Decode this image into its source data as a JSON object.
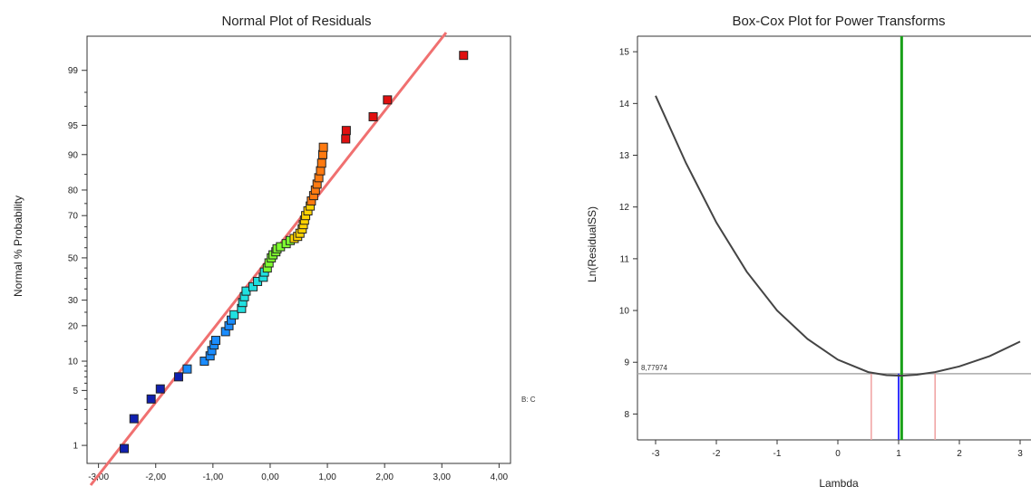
{
  "chart_data": [
    {
      "type": "scatter",
      "title": "Normal Plot of Residuals",
      "xlabel": "",
      "ylabel": "Normal % Probability",
      "xlim": [
        -3.2,
        4.2
      ],
      "x_ticks": [
        -3,
        -2,
        -1,
        0,
        1,
        2,
        3,
        4
      ],
      "x_tick_labels": [
        "-3,00",
        "-2,00",
        "-1,00",
        "0,00",
        "1,00",
        "2,00",
        "3,00",
        "4,00"
      ],
      "y_scale": "normal-probability",
      "y_ticks": [
        1,
        5,
        10,
        20,
        30,
        50,
        70,
        80,
        90,
        95,
        99
      ],
      "y_tick_labels": [
        "1",
        "5",
        "10",
        "20",
        "30",
        "50",
        "70",
        "80",
        "90",
        "95",
        "99"
      ],
      "reference_line_color": "#f07070",
      "side_label": "B: C",
      "point_colors_low_to_high": [
        "#1020b0",
        "#1a8cff",
        "#20e0e0",
        "#7fff30",
        "#ffd200",
        "#ff7a10",
        "#e01010"
      ],
      "points": [
        {
          "x": -2.55,
          "p": 0.9
        },
        {
          "x": -2.38,
          "p": 2.3
        },
        {
          "x": -2.08,
          "p": 4.0
        },
        {
          "x": -1.92,
          "p": 5.2
        },
        {
          "x": -1.6,
          "p": 7.0
        },
        {
          "x": -1.45,
          "p": 8.4
        },
        {
          "x": -1.15,
          "p": 10.0
        },
        {
          "x": -1.05,
          "p": 11.2
        },
        {
          "x": -1.02,
          "p": 12.5
        },
        {
          "x": -0.98,
          "p": 14.0
        },
        {
          "x": -0.95,
          "p": 15.3
        },
        {
          "x": -0.78,
          "p": 18.0
        },
        {
          "x": -0.72,
          "p": 20.0
        },
        {
          "x": -0.68,
          "p": 22.0
        },
        {
          "x": -0.63,
          "p": 24.0
        },
        {
          "x": -0.5,
          "p": 26.5
        },
        {
          "x": -0.48,
          "p": 29.0
        },
        {
          "x": -0.45,
          "p": 31.5
        },
        {
          "x": -0.42,
          "p": 34.0
        },
        {
          "x": -0.3,
          "p": 36.0
        },
        {
          "x": -0.22,
          "p": 38.5
        },
        {
          "x": -0.12,
          "p": 40.5
        },
        {
          "x": -0.1,
          "p": 43.0
        },
        {
          "x": -0.05,
          "p": 45.0
        },
        {
          "x": -0.02,
          "p": 47.5
        },
        {
          "x": 0.02,
          "p": 50.0
        },
        {
          "x": 0.05,
          "p": 51.5
        },
        {
          "x": 0.1,
          "p": 53.0
        },
        {
          "x": 0.12,
          "p": 54.5
        },
        {
          "x": 0.18,
          "p": 55.5
        },
        {
          "x": 0.28,
          "p": 57.0
        },
        {
          "x": 0.35,
          "p": 58.5
        },
        {
          "x": 0.42,
          "p": 59.5
        },
        {
          "x": 0.48,
          "p": 60.5
        },
        {
          "x": 0.52,
          "p": 62.0
        },
        {
          "x": 0.56,
          "p": 64.0
        },
        {
          "x": 0.58,
          "p": 66.0
        },
        {
          "x": 0.6,
          "p": 68.0
        },
        {
          "x": 0.62,
          "p": 70.0
        },
        {
          "x": 0.66,
          "p": 72.0
        },
        {
          "x": 0.7,
          "p": 74.0
        },
        {
          "x": 0.72,
          "p": 76.0
        },
        {
          "x": 0.76,
          "p": 78.0
        },
        {
          "x": 0.79,
          "p": 80.0
        },
        {
          "x": 0.82,
          "p": 82.0
        },
        {
          "x": 0.85,
          "p": 84.0
        },
        {
          "x": 0.88,
          "p": 86.0
        },
        {
          "x": 0.9,
          "p": 88.0
        },
        {
          "x": 0.92,
          "p": 90.0
        },
        {
          "x": 0.93,
          "p": 91.5
        },
        {
          "x": 1.32,
          "p": 93.0
        },
        {
          "x": 1.33,
          "p": 94.3
        },
        {
          "x": 1.8,
          "p": 96.0
        },
        {
          "x": 2.05,
          "p": 97.5
        },
        {
          "x": 3.38,
          "p": 99.4
        }
      ]
    },
    {
      "type": "line",
      "title": "Box-Cox Plot for Power Transforms",
      "xlabel": "Lambda",
      "ylabel": "Ln(ResidualSS)",
      "xlim": [
        -3,
        3
      ],
      "ylim": [
        7.5,
        15.3
      ],
      "x_ticks": [
        -3,
        -2,
        -1,
        0,
        1,
        2,
        3
      ],
      "y_ticks": [
        8,
        9,
        10,
        11,
        12,
        13,
        14,
        15
      ],
      "min_label": "8,77974",
      "min_value": 8.77974,
      "current_lambda": 1,
      "best_lambda": 1.05,
      "ci_low": 0.55,
      "ci_high": 1.6,
      "curve": {
        "x": [
          -3.0,
          -2.5,
          -2.0,
          -1.5,
          -1.0,
          -0.5,
          0.0,
          0.5,
          0.8,
          1.05,
          1.3,
          1.6,
          2.0,
          2.5,
          3.0
        ],
        "y": [
          14.15,
          12.85,
          11.7,
          10.75,
          10.0,
          9.45,
          9.05,
          8.81,
          8.75,
          8.74,
          8.76,
          8.81,
          8.92,
          9.12,
          9.4
        ]
      },
      "colors": {
        "curve": "#444444",
        "best_lambda_line": "#1aa01a",
        "current_lambda_line": "#3333ff",
        "ci_lines": "#f0a0a0",
        "min_line": "#aaaaaa"
      }
    }
  ]
}
